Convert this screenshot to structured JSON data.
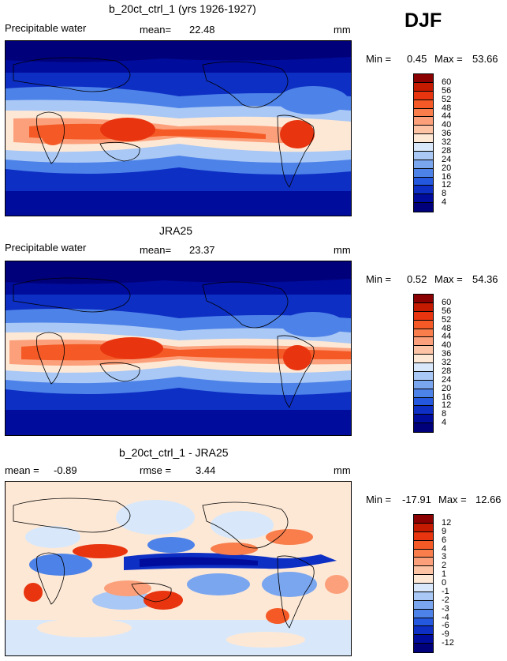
{
  "season": "DJF",
  "panels": [
    {
      "title": "b_20ct_ctrl_1 (yrs 1926-1927)",
      "variable": "Precipitable water",
      "mean_label": "mean=",
      "mean_value": "22.48",
      "units": "mm",
      "min_label": "Min =",
      "min_value": "0.45",
      "max_label": "Max =",
      "max_value": "53.66",
      "colorbar": [
        "60",
        "56",
        "52",
        "48",
        "44",
        "40",
        "36",
        "32",
        "28",
        "24",
        "20",
        "16",
        "12",
        "8",
        "4"
      ]
    },
    {
      "title": "JRA25",
      "variable": "Precipitable water",
      "mean_label": "mean=",
      "mean_value": "23.37",
      "units": "mm",
      "min_label": "Min =",
      "min_value": "0.52",
      "max_label": "Max =",
      "max_value": "54.36",
      "colorbar": [
        "60",
        "56",
        "52",
        "48",
        "44",
        "40",
        "36",
        "32",
        "28",
        "24",
        "20",
        "16",
        "12",
        "8",
        "4"
      ]
    },
    {
      "title": "b_20ct_ctrl_1 - JRA25",
      "mean_label": "mean =",
      "mean_value": "-0.89",
      "rmse_label": "rmse =",
      "rmse_value": "3.44",
      "units": "mm",
      "min_label": "Min =",
      "min_value": "-17.91",
      "max_label": "Max =",
      "max_value": "12.66",
      "colorbar": [
        "12",
        "9",
        "6",
        "4",
        "3",
        "2",
        "1",
        "0",
        "-1",
        "-2",
        "-3",
        "-4",
        "-6",
        "-9",
        "-12"
      ]
    }
  ],
  "colors": {
    "sequential": [
      "#8b0000",
      "#c41a00",
      "#e8350f",
      "#f55a26",
      "#f97e4c",
      "#fba07a",
      "#fdc3a5",
      "#fde8d6",
      "#d8e8fa",
      "#a9c8f5",
      "#7aa6ef",
      "#4d82e8",
      "#2458de",
      "#0d2fc4",
      "#000c9b",
      "#00007a"
    ],
    "diverging": [
      "#8b0000",
      "#c41a00",
      "#e8350f",
      "#f55a26",
      "#f97e4c",
      "#fba07a",
      "#fdc3a5",
      "#fde8d6",
      "#d8e8fa",
      "#a9c8f5",
      "#7aa6ef",
      "#4d82e8",
      "#2458de",
      "#0d2fc4",
      "#000c9b",
      "#00007a"
    ]
  }
}
